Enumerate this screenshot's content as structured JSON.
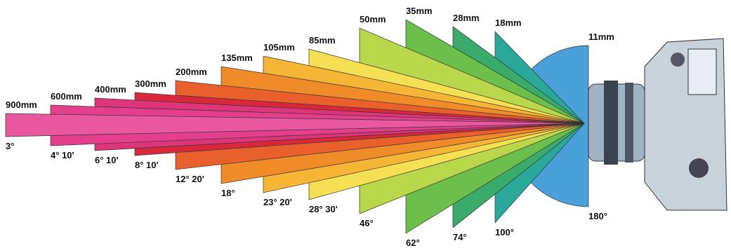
{
  "lenses": [
    {
      "focal": "900mm",
      "angle": "3°",
      "color": "#e9589f"
    },
    {
      "focal": "600mm",
      "angle": "4° 10'",
      "color": "#e43f8c"
    },
    {
      "focal": "400mm",
      "angle": "6° 10'",
      "color": "#de3479"
    },
    {
      "focal": "300mm",
      "angle": "8° 10'",
      "color": "#d9283c"
    },
    {
      "focal": "200mm",
      "angle": "12° 20'",
      "color": "#e9602c"
    },
    {
      "focal": "135mm",
      "angle": "18°",
      "color": "#f08b2a"
    },
    {
      "focal": "105mm",
      "angle": "23° 20'",
      "color": "#f7b535"
    },
    {
      "focal": "85mm",
      "angle": "28° 30'",
      "color": "#f4e052"
    },
    {
      "focal": "50mm",
      "angle": "46°",
      "color": "#bad64b"
    },
    {
      "focal": "35mm",
      "angle": "62°",
      "color": "#6dbf4b"
    },
    {
      "focal": "28mm",
      "angle": "74°",
      "color": "#3bab6b"
    },
    {
      "focal": "18mm",
      "angle": "100°",
      "color": "#2aa99b"
    },
    {
      "focal": "11mm",
      "angle": "180°",
      "color": "#4aa0d9"
    }
  ]
}
